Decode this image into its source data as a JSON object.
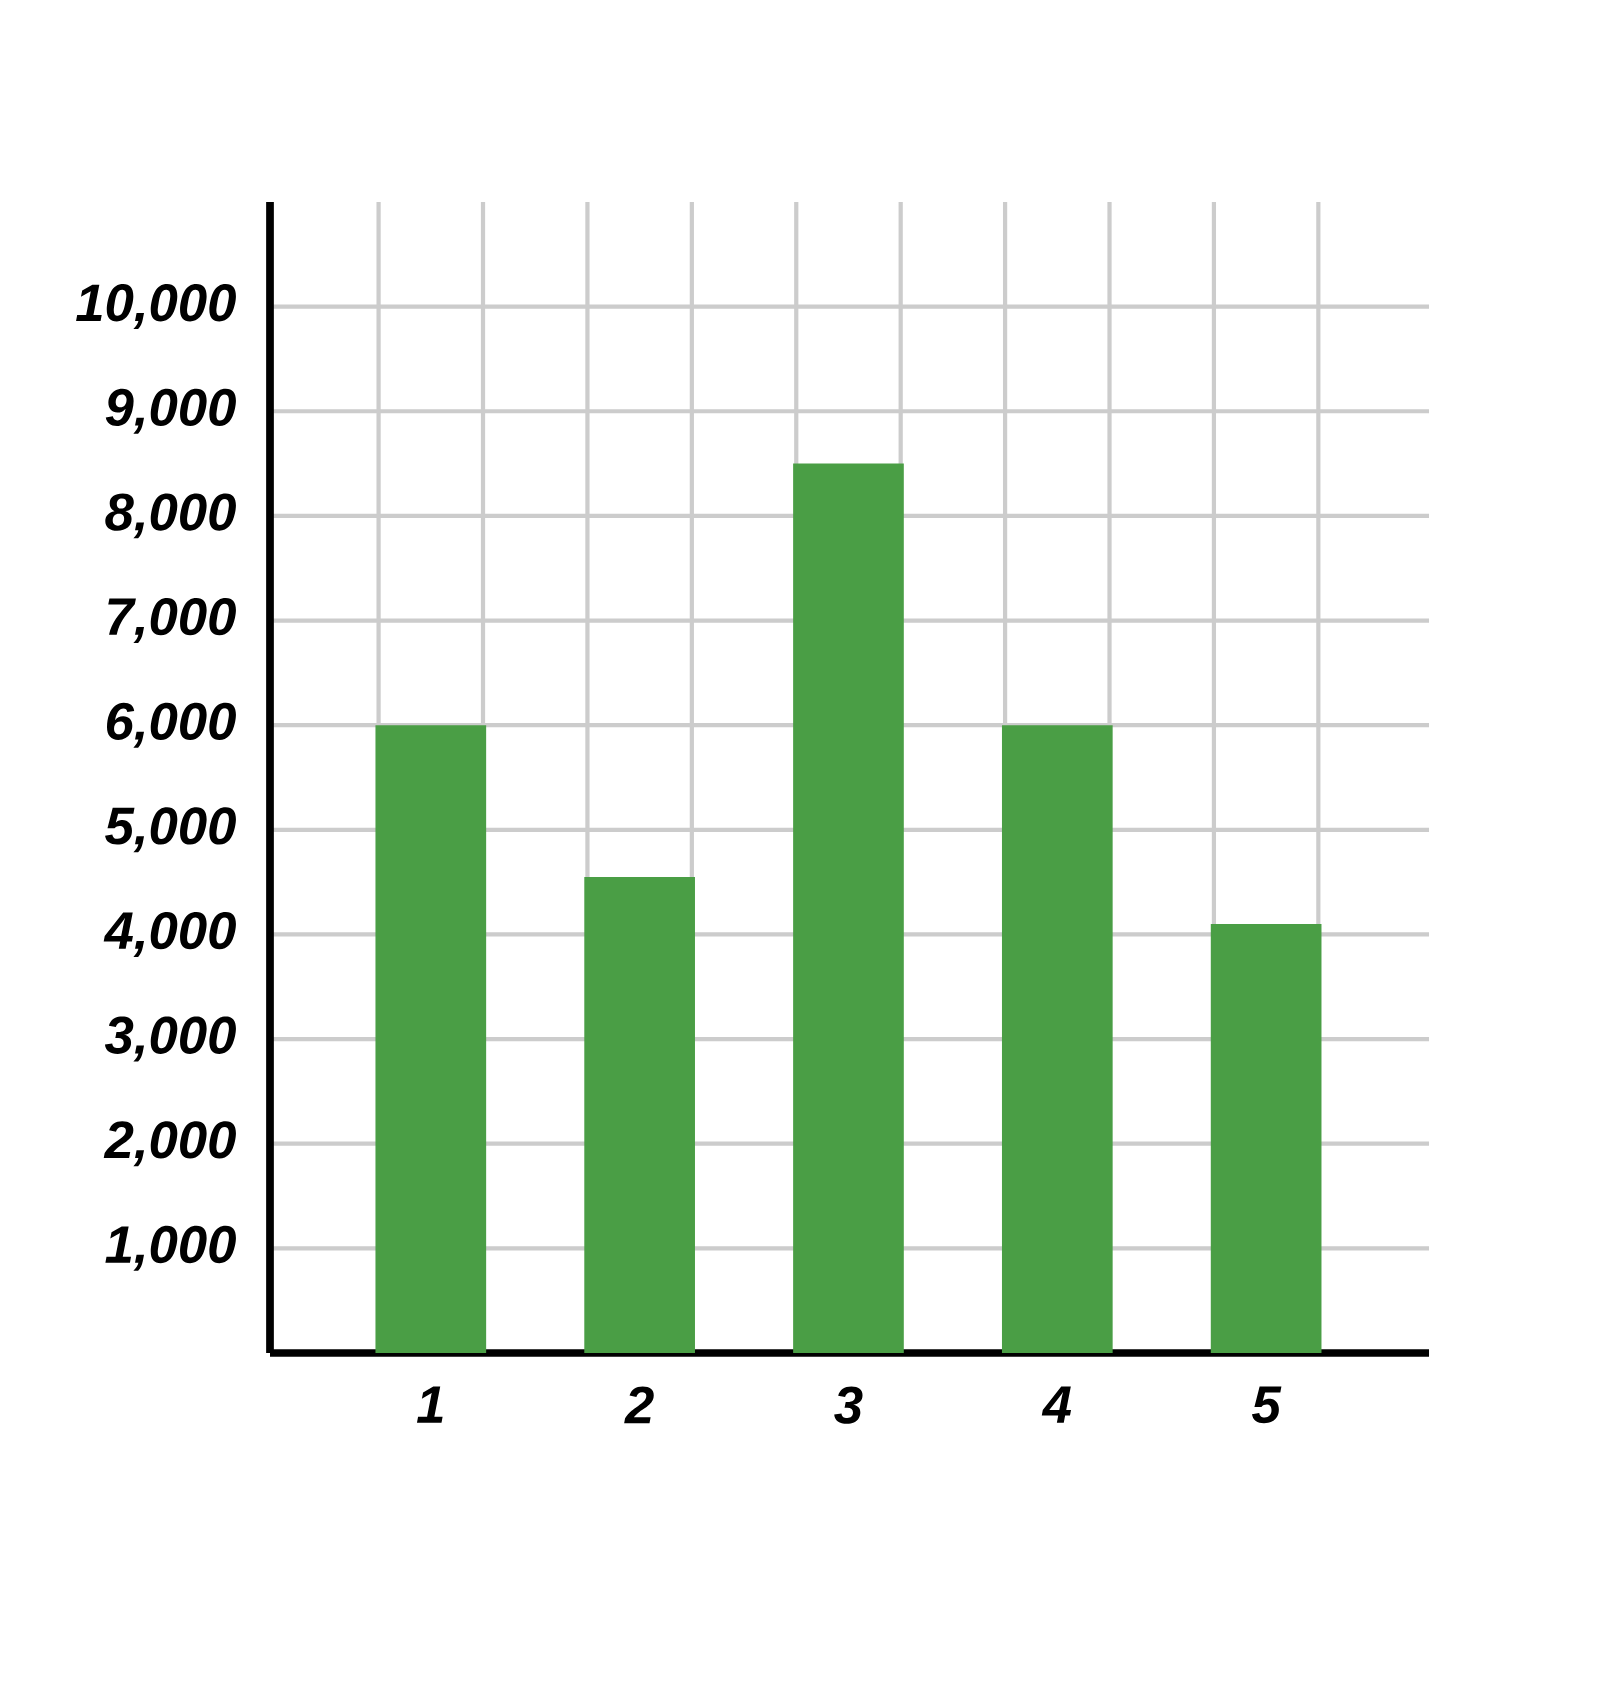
{
  "chart_data": {
    "type": "bar",
    "categories": [
      "1",
      "2",
      "3",
      "4",
      "5"
    ],
    "values": [
      6000,
      4550,
      8500,
      6000,
      4100
    ],
    "color": "#4a9e45",
    "ylim": [
      0,
      11000
    ],
    "yticks": [
      {
        "value": 1000,
        "label": "1,000"
      },
      {
        "value": 2000,
        "label": "2,000"
      },
      {
        "value": 3000,
        "label": "3,000"
      },
      {
        "value": 4000,
        "label": "4,000"
      },
      {
        "value": 5000,
        "label": "5,000"
      },
      {
        "value": 6000,
        "label": "6,000"
      },
      {
        "value": 7000,
        "label": "7,000"
      },
      {
        "value": 8000,
        "label": "8,000"
      },
      {
        "value": 9000,
        "label": "9,000"
      },
      {
        "value": 10000,
        "label": "10,000"
      }
    ],
    "grid": true
  }
}
